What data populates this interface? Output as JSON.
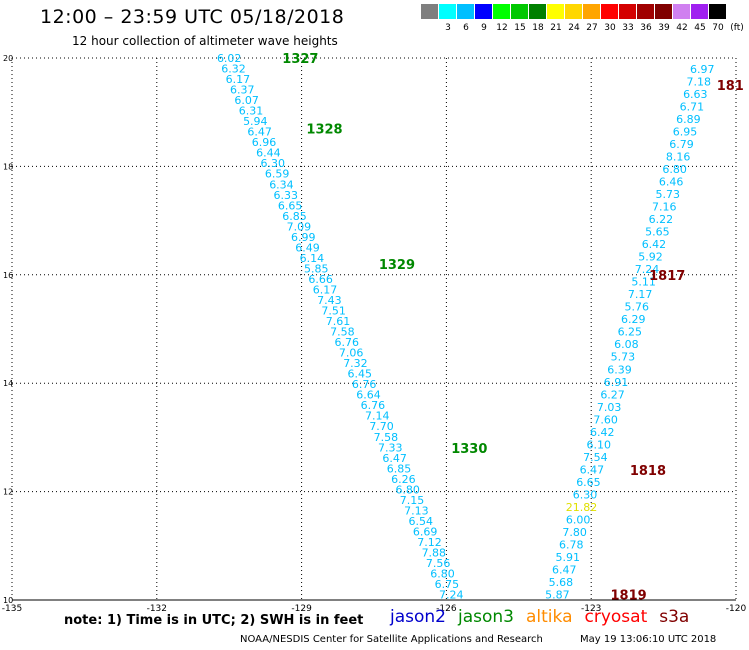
{
  "header": {
    "title": "12:00 – 23:59 UTC 05/18/2018",
    "subtitle": "12 hour collection of altimeter wave heights"
  },
  "scale": {
    "unit": "(ft)",
    "bins": [
      {
        "label": "",
        "color": "#7f7f7f"
      },
      {
        "label": "3",
        "color": "#00ffff"
      },
      {
        "label": "6",
        "color": "#00bfff"
      },
      {
        "label": "9",
        "color": "#0000ff"
      },
      {
        "label": "12",
        "color": "#00ff00"
      },
      {
        "label": "15",
        "color": "#00c800"
      },
      {
        "label": "18",
        "color": "#008000"
      },
      {
        "label": "21",
        "color": "#ffff00"
      },
      {
        "label": "24",
        "color": "#ffd700"
      },
      {
        "label": "27",
        "color": "#ffa500"
      },
      {
        "label": "30",
        "color": "#ff0000"
      },
      {
        "label": "33",
        "color": "#d40000"
      },
      {
        "label": "36",
        "color": "#a00000"
      },
      {
        "label": "39",
        "color": "#800000"
      },
      {
        "label": "42",
        "color": "#d080f0"
      },
      {
        "label": "45",
        "color": "#a020f0"
      },
      {
        "label": "70",
        "color": "#000000"
      }
    ]
  },
  "note": "note:  1) Time is in UTC;  2) SWH is in feet",
  "legend": [
    {
      "label": "jason2",
      "color": "#0000cc"
    },
    {
      "label": "jason3",
      "color": "#008800"
    },
    {
      "label": "altika",
      "color": "#ff8c00"
    },
    {
      "label": "cryosat",
      "color": "#ff0000"
    },
    {
      "label": "s3a",
      "color": "#800000"
    }
  ],
  "footer": {
    "credit": "NOAA/NESDIS Center for Satellite Applications and Research",
    "generated": "May 19 13:06:10 UTC 2018"
  },
  "chart_data": {
    "type": "scatter",
    "xlim": [
      -135,
      -120
    ],
    "ylim": [
      10,
      20
    ],
    "xticks": [
      -135,
      -132,
      -129,
      -126,
      -123,
      -120
    ],
    "yticks": [
      10,
      12,
      14,
      16,
      18,
      20
    ],
    "grid": true,
    "colors": {
      "cyan": "#00bfff",
      "yellow": "#e0e000"
    },
    "series": [
      {
        "name": "jason3",
        "color": "#008800",
        "track": {
          "x_start": -130.5,
          "y_start": 20.0,
          "x_end": -125.9,
          "y_end": 10.1
        },
        "values": [
          "6.02",
          "6.32",
          "6.17",
          "6.37",
          "6.07",
          "6.31",
          "5.94",
          "6.47",
          "6.96",
          "6.44",
          "6.30",
          "6.59",
          "6.34",
          "6.33",
          "6.65",
          "6.85",
          "7.09",
          "6.99",
          "6.49",
          "6.14",
          "5.85",
          "6.66",
          "6.17",
          "7.43",
          "7.51",
          "7.61",
          "7.58",
          "6.76",
          "7.06",
          "7.32",
          "6.45",
          "6.76",
          "6.64",
          "6.76",
          "7.14",
          "7.70",
          "7.58",
          "7.33",
          "6.47",
          "6.85",
          "6.26",
          "6.80",
          "7.15",
          "7.13",
          "6.54",
          "6.69",
          "7.12",
          "7.88",
          "7.56",
          "6.80",
          "6.75",
          "7.24"
        ],
        "passes": [
          {
            "label": "1327",
            "x": -129.4,
            "y": 20.0
          },
          {
            "label": "1328",
            "x": -128.9,
            "y": 18.7
          },
          {
            "label": "1329",
            "x": -127.4,
            "y": 16.2
          },
          {
            "label": "1330",
            "x": -125.9,
            "y": 12.8
          }
        ]
      },
      {
        "name": "s3a",
        "color": "#800000",
        "track": {
          "x_start": -120.7,
          "y_start": 19.8,
          "x_end": -123.7,
          "y_end": 10.1
        },
        "values": [
          "6.97",
          "7.18",
          "6.63",
          "6.71",
          "6.89",
          "6.95",
          "6.79",
          "8.16",
          "6.80",
          "6.46",
          "5.73",
          "7.16",
          "6.22",
          "5.65",
          "6.42",
          "5.92",
          "7.24",
          "5.11",
          "7.17",
          "5.76",
          "6.29",
          "6.25",
          "6.08",
          "5.73",
          "6.39",
          "6.91",
          "6.27",
          "7.03",
          "7.60",
          "6.42",
          "6.10",
          "7.54",
          "6.47",
          "6.65",
          "6.30",
          "21.82",
          "6.00",
          "7.80",
          "6.78",
          "5.91",
          "6.47",
          "5.68",
          "5.87"
        ],
        "highlight_value": "21.82",
        "passes": [
          {
            "label": "181",
            "x": -120.4,
            "y": 19.5
          },
          {
            "label": "1817",
            "x": -121.8,
            "y": 16.0
          },
          {
            "label": "1818",
            "x": -122.2,
            "y": 12.4
          },
          {
            "label": "1819",
            "x": -122.6,
            "y": 10.1
          }
        ]
      }
    ]
  }
}
